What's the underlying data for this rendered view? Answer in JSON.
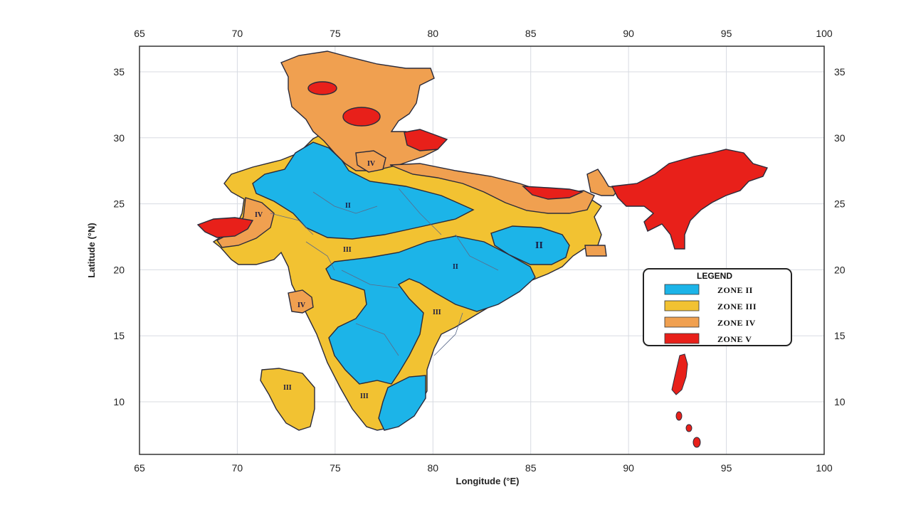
{
  "map": {
    "x_axis_label": "Longitude (°E)",
    "y_axis_label": "Latitude (°N)",
    "lon_ticks": [
      "65",
      "70",
      "75",
      "80",
      "85",
      "90",
      "95",
      "100"
    ],
    "lat_ticks": [
      "35",
      "30",
      "25",
      "20",
      "15",
      "10"
    ],
    "lon_range": [
      65,
      100
    ],
    "lat_range": [
      6,
      37
    ],
    "grid": true
  },
  "zone_labels": {
    "z2_central": "II",
    "z2_east": "II",
    "z2_odisha": "II",
    "z3_central": "III",
    "z3_east": "III",
    "z3_south": "III",
    "z3_lakshadweep": "III",
    "z4_north": "IV",
    "z4_kutch": "IV",
    "z4_konkan": "IV"
  },
  "legend": {
    "title": "LEGEND",
    "position": "right",
    "items": [
      {
        "label": "ZONE II",
        "color": "#1cb4e8"
      },
      {
        "label": "ZONE III",
        "color": "#f2c232"
      },
      {
        "label": "ZONE IV",
        "color": "#f0a050"
      },
      {
        "label": "ZONE V",
        "color": "#e8201a"
      }
    ]
  },
  "colors": {
    "zone2": "#1cb4e8",
    "zone3": "#f2c232",
    "zone4": "#f0a050",
    "zone5": "#e8201a",
    "outline": "#2a2a3a"
  }
}
